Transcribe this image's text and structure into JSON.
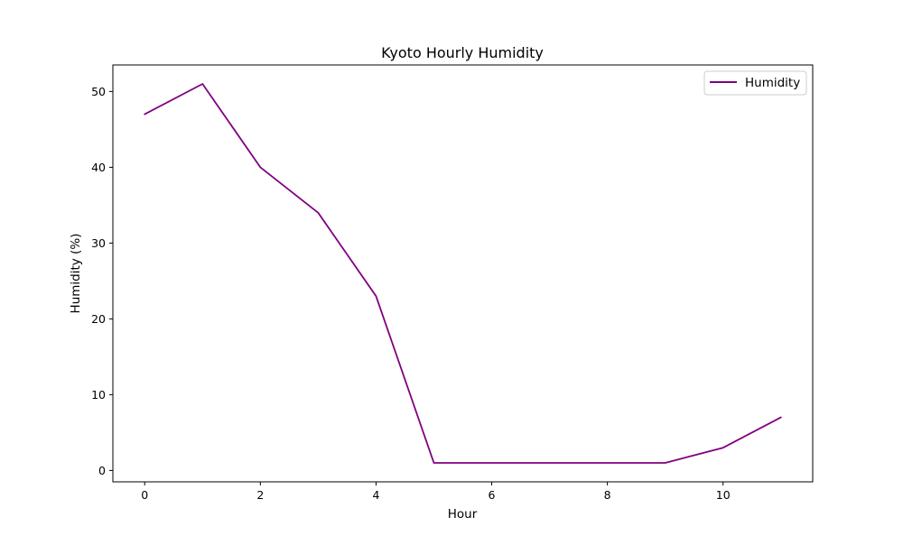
{
  "chart_data": {
    "type": "line",
    "title": "Kyoto Hourly Humidity",
    "xlabel": "Hour",
    "ylabel": "Humidity (%)",
    "x": [
      0,
      1,
      2,
      3,
      4,
      5,
      6,
      7,
      8,
      9,
      10,
      11
    ],
    "series": [
      {
        "name": "Humidity",
        "values": [
          47,
          51,
          40,
          34,
          23,
          1,
          1,
          1,
          1,
          1,
          3,
          7
        ],
        "color": "#800080"
      }
    ],
    "xlim": [
      -0.55,
      11.55
    ],
    "ylim": [
      -1.5,
      53.5
    ],
    "xticks": [
      0,
      2,
      4,
      6,
      8,
      10
    ],
    "yticks": [
      0,
      10,
      20,
      30,
      40,
      50
    ],
    "grid": false,
    "legend": "top-right"
  }
}
